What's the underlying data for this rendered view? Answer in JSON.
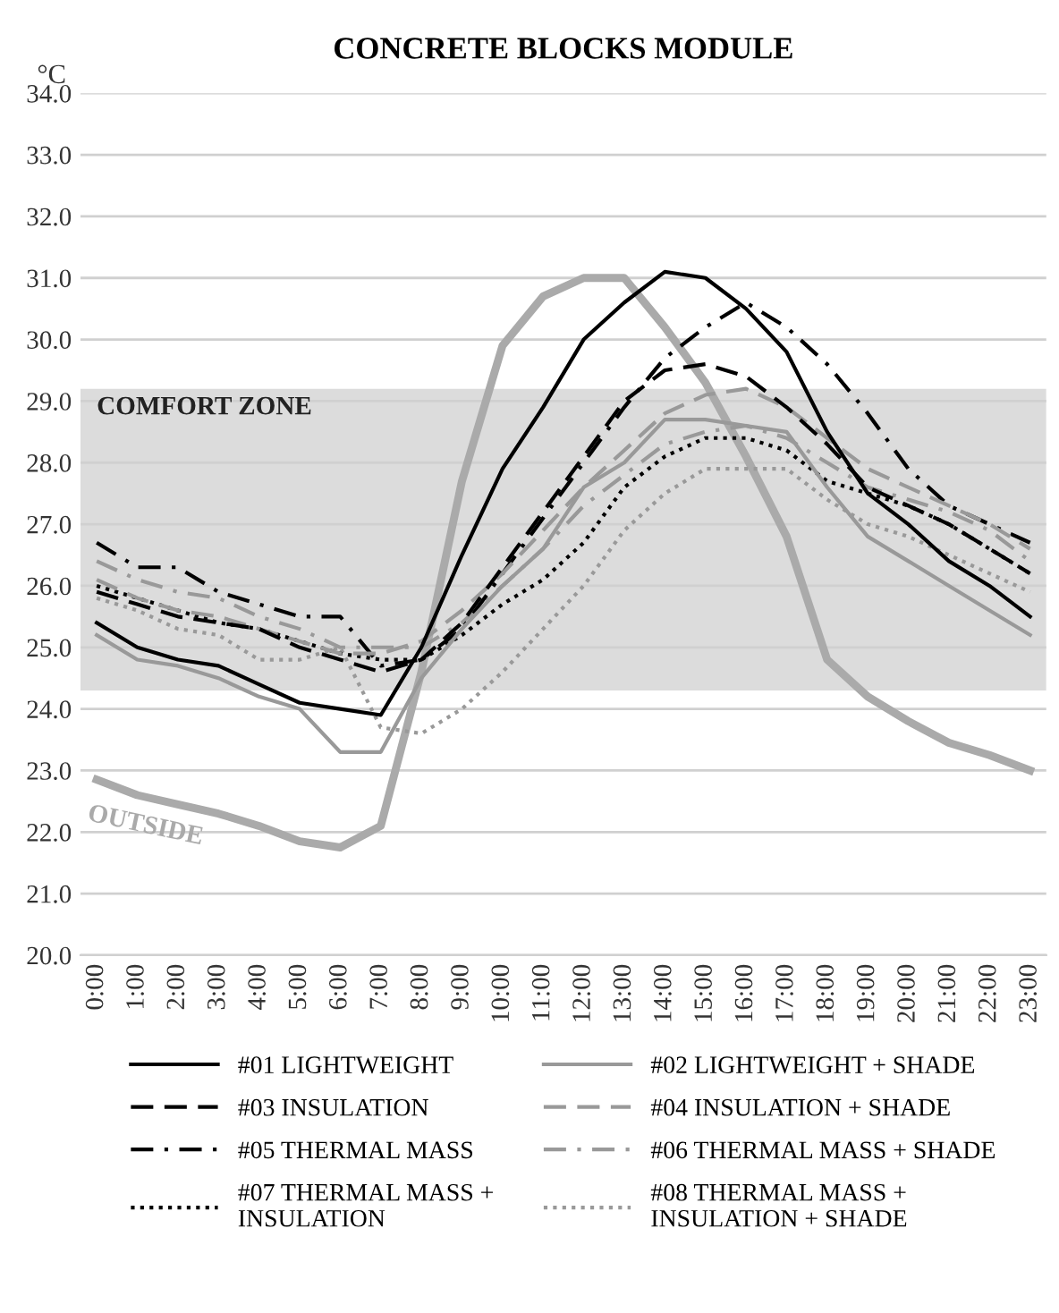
{
  "chart_data": {
    "type": "line",
    "title": "CONCRETE BLOCKS MODULE",
    "ylabel": "°C",
    "categories": [
      "0:00",
      "1:00",
      "2:00",
      "3:00",
      "4:00",
      "5:00",
      "6:00",
      "7:00",
      "8:00",
      "9:00",
      "10:00",
      "11:00",
      "12:00",
      "13:00",
      "14:00",
      "15:00",
      "16:00",
      "17:00",
      "18:00",
      "19:00",
      "20:00",
      "21:00",
      "22:00",
      "23:00"
    ],
    "ylim": [
      20,
      34
    ],
    "yticks": [
      {
        "value": 20,
        "label": "20.0"
      },
      {
        "value": 21,
        "label": "21.0"
      },
      {
        "value": 22,
        "label": "22.0"
      },
      {
        "value": 23,
        "label": "23.0"
      },
      {
        "value": 24,
        "label": "24.0"
      },
      {
        "value": 25,
        "label": "25.0"
      },
      {
        "value": 26,
        "label": "26.0"
      },
      {
        "value": 27,
        "label": "27.0"
      },
      {
        "value": 28,
        "label": "28.0"
      },
      {
        "value": 29,
        "label": "29.0"
      },
      {
        "value": 30,
        "label": "30.0"
      },
      {
        "value": 31,
        "label": "31.0"
      },
      {
        "value": 32,
        "label": "32.0"
      },
      {
        "value": 33,
        "label": "33.0"
      },
      {
        "value": 34,
        "label": "34.0"
      }
    ],
    "grid": "y",
    "legend": "bottom",
    "marker": "none",
    "bands": [
      {
        "axis": "y",
        "from": 24.3,
        "to": 29.2,
        "label": "COMFORT ZONE",
        "color": "#dcdcdc"
      }
    ],
    "series": [
      {
        "name": "#01 LIGHTWEIGHT",
        "color": "#000000",
        "line_style": "solid",
        "values": [
          25.4,
          25.0,
          24.8,
          24.7,
          24.4,
          24.1,
          24.0,
          23.9,
          25.0,
          26.5,
          27.9,
          28.9,
          30.0,
          30.6,
          31.1,
          31.0,
          30.5,
          29.8,
          28.5,
          27.5,
          27.0,
          26.4,
          26.0,
          25.5
        ]
      },
      {
        "name": "#02 LIGHTWEIGHT + SHADE",
        "color": "#999999",
        "line_style": "solid",
        "values": [
          25.2,
          24.8,
          24.7,
          24.5,
          24.2,
          24.0,
          23.3,
          23.3,
          24.5,
          25.3,
          26.0,
          26.6,
          27.6,
          28.0,
          28.7,
          28.7,
          28.6,
          28.5,
          27.6,
          26.8,
          26.4,
          26.0,
          25.6,
          25.2
        ]
      },
      {
        "name": "#03 INSULATION",
        "color": "#000000",
        "line_style": "dashed",
        "values": [
          25.9,
          25.7,
          25.5,
          25.4,
          25.3,
          25.0,
          24.8,
          24.6,
          24.8,
          25.4,
          26.3,
          27.2,
          28.1,
          29.0,
          29.5,
          29.6,
          29.4,
          28.9,
          28.3,
          27.6,
          27.3,
          27.0,
          26.6,
          26.2
        ]
      },
      {
        "name": "#04 INSULATION + SHADE",
        "color": "#999999",
        "line_style": "dashed",
        "values": [
          26.1,
          25.8,
          25.6,
          25.5,
          25.3,
          25.1,
          24.9,
          24.9,
          25.1,
          25.6,
          26.2,
          26.9,
          27.6,
          28.2,
          28.8,
          29.1,
          29.2,
          28.9,
          28.4,
          27.9,
          27.6,
          27.3,
          27.0,
          26.6
        ]
      },
      {
        "name": "#05 THERMAL MASS",
        "color": "#000000",
        "line_style": "dashdot",
        "values": [
          26.7,
          26.3,
          26.3,
          25.9,
          25.7,
          25.5,
          25.5,
          24.7,
          24.8,
          25.3,
          26.2,
          27.1,
          28.0,
          28.9,
          29.7,
          30.2,
          30.6,
          30.2,
          29.6,
          28.8,
          27.9,
          27.3,
          27.0,
          26.7
        ]
      },
      {
        "name": "#06 THERMAL MASS + SHADE",
        "color": "#999999",
        "line_style": "dashdot",
        "values": [
          26.4,
          26.1,
          25.9,
          25.8,
          25.5,
          25.3,
          25.0,
          25.0,
          25.0,
          25.4,
          26.0,
          26.6,
          27.3,
          27.8,
          28.3,
          28.5,
          28.6,
          28.4,
          28.0,
          27.6,
          27.4,
          27.2,
          26.9,
          26.4
        ]
      },
      {
        "name": "#07 THERMAL MASS +\nINSULATION",
        "color": "#000000",
        "line_style": "dotted",
        "values": [
          26.0,
          25.8,
          25.6,
          25.4,
          25.3,
          25.1,
          24.9,
          24.8,
          24.8,
          25.2,
          25.7,
          26.1,
          26.7,
          27.6,
          28.1,
          28.4,
          28.4,
          28.2,
          27.7,
          27.5,
          27.3,
          27.0,
          26.6,
          26.2
        ]
      },
      {
        "name": "#08 THERMAL MASS +\nINSULATION + SHADE",
        "color": "#999999",
        "line_style": "dotted",
        "values": [
          25.8,
          25.6,
          25.3,
          25.2,
          24.8,
          24.8,
          25.0,
          23.7,
          23.6,
          24.0,
          24.6,
          25.3,
          26.0,
          26.9,
          27.5,
          27.9,
          27.9,
          27.9,
          27.4,
          27.0,
          26.8,
          26.5,
          26.2,
          25.9
        ]
      },
      {
        "name": "OUTSIDE",
        "color": "#aaaaaa",
        "line_style": "solid",
        "values": [
          22.85,
          22.6,
          22.45,
          22.3,
          22.1,
          21.85,
          21.75,
          22.1,
          24.6,
          27.7,
          29.9,
          30.7,
          31.0,
          31.0,
          30.2,
          29.3,
          28.1,
          26.8,
          24.8,
          24.2,
          23.8,
          23.45,
          23.25,
          23.0
        ]
      }
    ]
  }
}
